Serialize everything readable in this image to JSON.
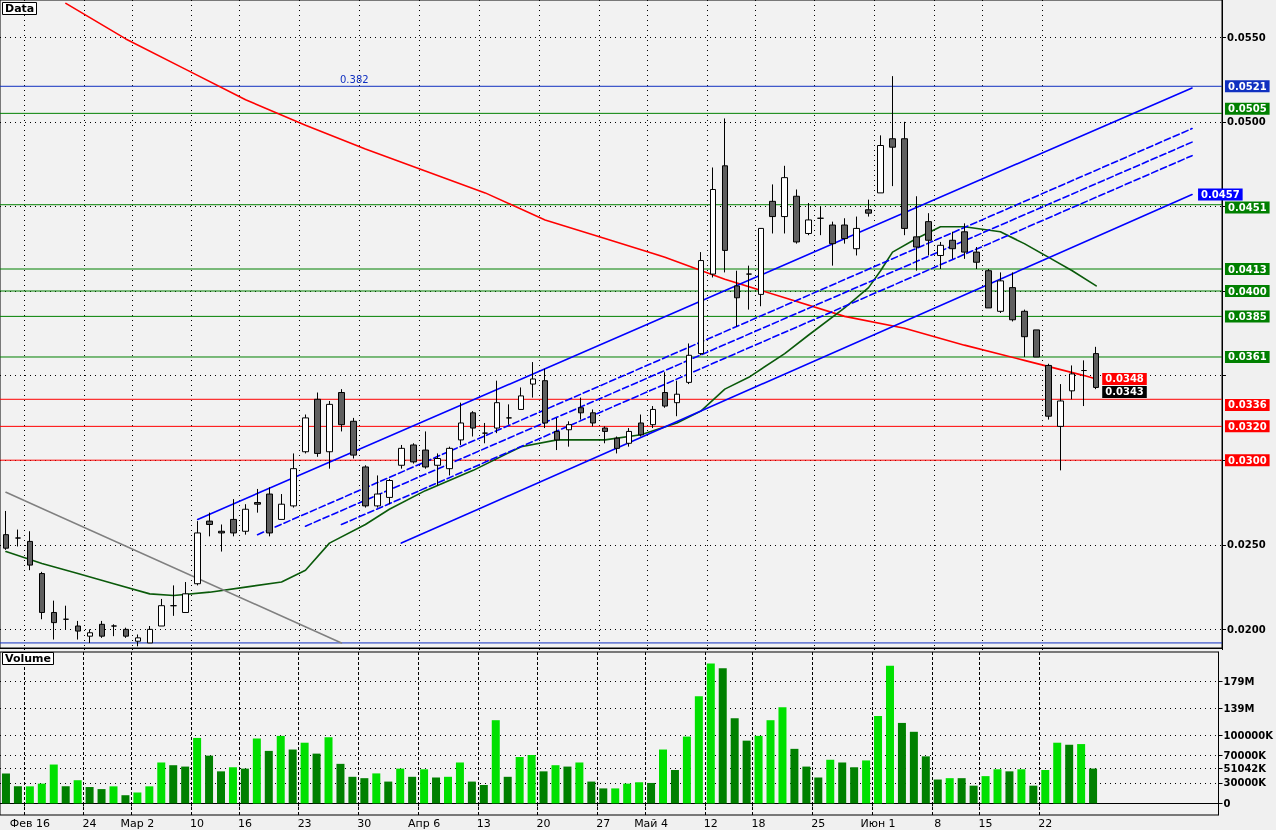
{
  "chart_data": [
    {
      "type": "candlestick",
      "title": "Data",
      "categories": [
        null,
        null,
        null,
        null,
        null,
        null,
        null,
        null,
        null,
        null,
        null,
        null,
        null,
        null,
        null,
        null,
        null,
        null,
        null,
        null,
        null,
        null,
        null,
        null,
        null,
        null,
        null,
        null,
        null,
        null,
        null,
        null,
        null,
        null,
        null,
        null,
        null,
        null,
        null,
        null,
        null,
        null,
        null,
        null,
        null,
        null,
        null,
        null,
        null,
        null,
        null,
        null,
        null,
        null,
        null,
        null,
        null,
        null,
        null,
        null,
        null,
        null,
        null,
        null,
        null,
        null,
        null,
        null,
        null,
        null,
        null,
        null,
        null,
        null,
        null,
        null,
        null,
        null,
        null,
        null,
        null,
        null,
        null,
        null,
        null,
        null,
        null,
        null,
        null,
        null,
        null,
        null,
        null,
        null,
        null,
        null,
        null,
        null,
        null,
        null,
        null,
        null
      ],
      "ohlc": [
        [
          0.0256,
          0.027,
          0.0247,
          0.0248
        ],
        [
          0.0254,
          0.0259,
          0.0249,
          0.0254
        ],
        [
          0.0252,
          0.0258,
          0.0235,
          0.0238
        ],
        [
          0.0233,
          0.0234,
          0.0206,
          0.021
        ],
        [
          0.021,
          0.0217,
          0.0194,
          0.0204
        ],
        [
          0.0206,
          0.0214,
          0.02,
          0.0206
        ],
        [
          0.0202,
          0.0205,
          0.0194,
          0.0199
        ],
        [
          0.0196,
          0.02,
          0.0192,
          0.0198
        ],
        [
          0.0203,
          0.0205,
          0.0195,
          0.0196
        ],
        [
          0.0202,
          0.0203,
          0.0196,
          0.0202
        ],
        [
          0.02,
          0.0201,
          0.0195,
          0.0196
        ],
        [
          0.0193,
          0.0197,
          0.019,
          0.0195
        ],
        [
          0.0192,
          0.0202,
          0.0192,
          0.02
        ],
        [
          0.0202,
          0.0218,
          0.0202,
          0.0214
        ],
        [
          0.0214,
          0.0226,
          0.0208,
          0.0214
        ],
        [
          0.021,
          0.0228,
          0.021,
          0.0221
        ],
        [
          0.0227,
          0.0264,
          0.0226,
          0.0257
        ],
        [
          0.0264,
          0.0269,
          0.0255,
          0.0262
        ],
        [
          0.0258,
          0.0262,
          0.0246,
          0.0257
        ],
        [
          0.0265,
          0.0277,
          0.0255,
          0.0257
        ],
        [
          0.0258,
          0.0274,
          0.0256,
          0.0271
        ],
        [
          0.0275,
          0.0283,
          0.0269,
          0.0274
        ],
        [
          0.028,
          0.0284,
          0.0255,
          0.0257
        ],
        [
          0.0265,
          0.028,
          0.0265,
          0.0274
        ],
        [
          0.0273,
          0.0304,
          0.0272,
          0.0295
        ],
        [
          0.0305,
          0.0327,
          0.0304,
          0.0325
        ],
        [
          0.0336,
          0.034,
          0.0302,
          0.0304
        ],
        [
          0.0305,
          0.0335,
          0.0295,
          0.0333
        ],
        [
          0.034,
          0.0342,
          0.0317,
          0.0321
        ],
        [
          0.0323,
          0.0325,
          0.0301,
          0.0303
        ],
        [
          0.0296,
          0.0297,
          0.0272,
          0.0273
        ],
        [
          0.0273,
          0.0291,
          0.0272,
          0.028
        ],
        [
          0.0278,
          0.0289,
          0.0274,
          0.0288
        ],
        [
          0.0297,
          0.0309,
          0.0295,
          0.0307
        ],
        [
          0.0309,
          0.031,
          0.0298,
          0.0299
        ],
        [
          0.0306,
          0.0317,
          0.0295,
          0.0296
        ],
        [
          0.0297,
          0.0304,
          0.0285,
          0.0301
        ],
        [
          0.0295,
          0.0308,
          0.0291,
          0.0307
        ],
        [
          0.0312,
          0.0334,
          0.0309,
          0.0322
        ],
        [
          0.0328,
          0.0329,
          0.0314,
          0.0319
        ],
        [
          0.0316,
          0.0322,
          0.031,
          0.0316
        ],
        [
          0.0319,
          0.0347,
          0.0316,
          0.0334
        ],
        [
          0.0325,
          0.0333,
          0.0321,
          0.0325
        ],
        [
          0.033,
          0.0343,
          0.033,
          0.0338
        ],
        [
          0.0345,
          0.0358,
          0.0337,
          0.0348
        ],
        [
          0.0347,
          0.0354,
          0.0319,
          0.0322
        ],
        [
          0.0317,
          0.0325,
          0.0306,
          0.0312
        ],
        [
          0.0318,
          0.0323,
          0.0308,
          0.0321
        ],
        [
          0.0331,
          0.0337,
          0.0324,
          0.0328
        ],
        [
          0.0328,
          0.033,
          0.032,
          0.0322
        ],
        [
          0.0319,
          0.032,
          0.031,
          0.0317
        ],
        [
          0.0313,
          0.0314,
          0.0304,
          0.0307
        ],
        [
          0.031,
          0.0319,
          0.0308,
          0.0317
        ],
        [
          0.0322,
          0.0327,
          0.0314,
          0.0315
        ],
        [
          0.0321,
          0.0332,
          0.0319,
          0.033
        ],
        [
          0.034,
          0.0352,
          0.0331,
          0.0332
        ],
        [
          0.0334,
          0.0347,
          0.0326,
          0.0339
        ],
        [
          0.0346,
          0.0369,
          0.0345,
          0.0362
        ],
        [
          0.0363,
          0.0423,
          0.0362,
          0.0418
        ],
        [
          0.041,
          0.0473,
          0.0408,
          0.046
        ],
        [
          0.0474,
          0.0502,
          0.0411,
          0.0424
        ],
        [
          0.0403,
          0.0412,
          0.0379,
          0.0396
        ],
        [
          0.041,
          0.0415,
          0.0389,
          0.041
        ],
        [
          0.0398,
          0.0437,
          0.0391,
          0.0437
        ],
        [
          0.0453,
          0.0463,
          0.0434,
          0.0444
        ],
        [
          0.0444,
          0.0474,
          0.0434,
          0.0467
        ],
        [
          0.0456,
          0.046,
          0.0428,
          0.0429
        ],
        [
          0.0434,
          0.0452,
          0.0433,
          0.0442
        ],
        [
          0.0443,
          0.045,
          0.0433,
          0.0443
        ],
        [
          0.0439,
          0.0441,
          0.0415,
          0.0428
        ],
        [
          0.0439,
          0.0443,
          0.0428,
          0.0431
        ],
        [
          0.0425,
          0.0444,
          0.0421,
          0.0437
        ],
        [
          0.0448,
          0.0454,
          0.0444,
          0.0446
        ],
        [
          0.0458,
          0.0492,
          0.0458,
          0.0486
        ],
        [
          0.049,
          0.0527,
          0.0462,
          0.0485
        ],
        [
          0.049,
          0.05,
          0.0433,
          0.0437
        ],
        [
          0.0432,
          0.0456,
          0.0412,
          0.0426
        ],
        [
          0.0441,
          0.0446,
          0.0421,
          0.043
        ],
        [
          0.0421,
          0.0429,
          0.0413,
          0.0427
        ],
        [
          0.043,
          0.0435,
          0.0419,
          0.0425
        ],
        [
          0.0435,
          0.044,
          0.0419,
          0.0423
        ],
        [
          0.0423,
          0.0426,
          0.0413,
          0.0417
        ],
        [
          0.0412,
          0.0413,
          0.039,
          0.039
        ],
        [
          0.0388,
          0.0411,
          0.0387,
          0.0406
        ],
        [
          0.0402,
          0.0411,
          0.0382,
          0.0383
        ],
        [
          0.0388,
          0.0389,
          0.0361,
          0.0373
        ],
        [
          0.0377,
          0.0377,
          0.0361,
          0.0361
        ],
        [
          0.0356,
          0.0357,
          0.0324,
          0.0326
        ],
        [
          0.032,
          0.0345,
          0.0294,
          0.0335
        ],
        [
          0.0341,
          0.0356,
          0.0336,
          0.0351
        ],
        [
          0.0353,
          0.0359,
          0.0332,
          0.0353
        ],
        [
          0.0363,
          0.0367,
          0.0342,
          0.0343
        ],
        null,
        null,
        null,
        null,
        null,
        null,
        null,
        null,
        null,
        null
      ],
      "value_labels": [
        null,
        null,
        null,
        null,
        null,
        null,
        null,
        null,
        null,
        null,
        null,
        null,
        null,
        null,
        null,
        null,
        null,
        null,
        null,
        null,
        null,
        null,
        null,
        null,
        null,
        null,
        null,
        null,
        null,
        null,
        null,
        null,
        null,
        null,
        null,
        null,
        null,
        null,
        null,
        null,
        null,
        null,
        null,
        null,
        null,
        null,
        null,
        null,
        null,
        null,
        null,
        null,
        null,
        null,
        null,
        null,
        null,
        null,
        null,
        null,
        null,
        null,
        null,
        null,
        null,
        null,
        null,
        null,
        null,
        null,
        null,
        null,
        null,
        null,
        null,
        null,
        null,
        null,
        null,
        null,
        null,
        null,
        null,
        null,
        null,
        null,
        null,
        null,
        null,
        null,
        null,
        "0.0343",
        null,
        null,
        null,
        null,
        null,
        null,
        null,
        null,
        null,
        null
      ],
      "series": [
        {
          "type": "line",
          "color": "#ff0000",
          "values": [
            null,
            null,
            null,
            null,
            null,
            0.057,
            null,
            null,
            null,
            null,
            0.0549,
            null,
            null,
            null,
            null,
            0.0531,
            null,
            null,
            null,
            null,
            0.0513,
            null,
            null,
            null,
            null,
            0.0498,
            null,
            null,
            null,
            null,
            0.0484,
            null,
            null,
            null,
            null,
            0.0471,
            null,
            null,
            null,
            null,
            0.0458,
            null,
            null,
            null,
            null,
            0.0442,
            null,
            null,
            null,
            null,
            0.0431,
            null,
            null,
            null,
            null,
            0.042,
            null,
            null,
            null,
            null,
            0.0407,
            null,
            null,
            null,
            null,
            0.0396,
            null,
            null,
            null,
            null,
            0.0385,
            null,
            null,
            null,
            null,
            0.0378,
            null,
            null,
            null,
            null,
            0.0368,
            null,
            null,
            null,
            null,
            0.0359,
            null,
            null,
            null,
            null,
            0.035,
            0.0348,
            null,
            null,
            null,
            null,
            null,
            null,
            null,
            null,
            null,
            null
          ],
          "value_labels": [
            null,
            null,
            null,
            null,
            null,
            null,
            null,
            null,
            null,
            null,
            null,
            null,
            null,
            null,
            null,
            null,
            null,
            null,
            null,
            null,
            null,
            null,
            null,
            null,
            null,
            null,
            null,
            null,
            null,
            null,
            null,
            null,
            null,
            null,
            null,
            null,
            null,
            null,
            null,
            null,
            null,
            null,
            null,
            null,
            null,
            null,
            null,
            null,
            null,
            null,
            null,
            null,
            null,
            null,
            null,
            null,
            null,
            null,
            null,
            null,
            null,
            null,
            null,
            null,
            null,
            null,
            null,
            null,
            null,
            null,
            null,
            null,
            null,
            null,
            null,
            null,
            null,
            null,
            null,
            null,
            null,
            null,
            null,
            null,
            null,
            null,
            null,
            null,
            null,
            null,
            null,
            "0.0348",
            null,
            null,
            null,
            null,
            null,
            null,
            null,
            null,
            null,
            null
          ]
        },
        {
          "type": "line",
          "color": "#0a5a0a",
          "values": [
            0.0246,
            null,
            null,
            0.0239,
            null,
            null,
            0.0233,
            null,
            null,
            0.0227,
            null,
            null,
            0.0221,
            null,
            0.022,
            null,
            null,
            0.0222,
            null,
            null,
            0.0225,
            null,
            null,
            0.0228,
            null,
            0.0235,
            null,
            0.0251,
            null,
            null,
            0.0262,
            null,
            0.0271,
            null,
            null,
            0.0282,
            null,
            null,
            null,
            0.0294,
            null,
            null,
            null,
            0.0308,
            null,
            null,
            0.0312,
            null,
            null,
            null,
            0.0312,
            null,
            null,
            0.0315,
            null,
            null,
            0.0322,
            null,
            0.0329,
            null,
            0.0342,
            null,
            0.0349,
            null,
            null,
            0.0363,
            null,
            0.0374,
            null,
            null,
            0.039,
            null,
            0.0402,
            0.0412,
            0.0423,
            null,
            0.0431,
            null,
            0.0438,
            null,
            0.0438,
            null,
            null,
            0.0435,
            null,
            0.0428,
            null,
            0.042,
            null,
            0.0412,
            null,
            0.0403,
            null,
            null,
            null,
            null,
            null,
            null,
            null,
            null,
            null,
            null
          ]
        },
        {
          "type": "line",
          "color": "#808080",
          "values": [
            0.0281,
            null,
            null,
            null,
            null,
            null,
            null,
            null,
            null,
            null,
            null,
            null,
            null,
            null,
            null,
            null,
            null,
            null,
            null,
            null,
            null,
            null,
            null,
            null,
            null,
            null,
            null,
            null,
            0.0192,
            null,
            null,
            null,
            null,
            null,
            null,
            null,
            null,
            null,
            null,
            null,
            null,
            null,
            null,
            null,
            null,
            null,
            null,
            null,
            null,
            null,
            null,
            null,
            null,
            null,
            null,
            null,
            null,
            null,
            null,
            null,
            null,
            null,
            null,
            null,
            null,
            null,
            null,
            null,
            null,
            null,
            null,
            null,
            null,
            null,
            null,
            null,
            null,
            null,
            null,
            null,
            null,
            null,
            null,
            null,
            null,
            null,
            null,
            null,
            null,
            null,
            null,
            null,
            null,
            null,
            null,
            null,
            null,
            null,
            null,
            null,
            null,
            null
          ]
        },
        {
          "type": "line",
          "color": "#0000ff",
          "values": [
            null,
            null,
            null,
            null,
            null,
            null,
            null,
            null,
            null,
            null,
            null,
            null,
            null,
            null,
            null,
            null,
            0.0265,
            null,
            null,
            null,
            null,
            null,
            null,
            null,
            null,
            null,
            null,
            null,
            null,
            null,
            null,
            null,
            null,
            null,
            null,
            null,
            null,
            null,
            null,
            null,
            null,
            null,
            null,
            null,
            null,
            null,
            null,
            null,
            null,
            null,
            null,
            null,
            null,
            null,
            null,
            null,
            null,
            null,
            null,
            null,
            null,
            null,
            null,
            null,
            null,
            null,
            null,
            null,
            null,
            null,
            null,
            null,
            null,
            null,
            null,
            null,
            null,
            null,
            null,
            null,
            null,
            null,
            null,
            null,
            null,
            null,
            null,
            null,
            null,
            null,
            null,
            null,
            null,
            null,
            null,
            null,
            null,
            null,
            null,
            0.052,
            null,
            null
          ]
        },
        {
          "type": "line",
          "color": "#0000ff",
          "values": [
            null,
            null,
            null,
            null,
            null,
            null,
            null,
            null,
            null,
            null,
            null,
            null,
            null,
            null,
            null,
            null,
            null,
            null,
            null,
            null,
            null,
            null,
            null,
            null,
            null,
            null,
            null,
            null,
            null,
            null,
            null,
            null,
            null,
            0.0251,
            null,
            null,
            null,
            null,
            null,
            null,
            null,
            null,
            null,
            null,
            null,
            null,
            null,
            null,
            null,
            null,
            null,
            null,
            null,
            null,
            null,
            null,
            null,
            null,
            null,
            null,
            null,
            null,
            null,
            null,
            null,
            null,
            null,
            null,
            null,
            null,
            null,
            null,
            null,
            null,
            null,
            null,
            null,
            null,
            null,
            null,
            null,
            null,
            null,
            null,
            null,
            null,
            null,
            null,
            null,
            null,
            null,
            null,
            null,
            null,
            null,
            null,
            null,
            null,
            null,
            0.0457,
            null,
            null
          ],
          "value_labels": [
            null,
            null,
            null,
            null,
            null,
            null,
            null,
            null,
            null,
            null,
            null,
            null,
            null,
            null,
            null,
            null,
            null,
            null,
            null,
            null,
            null,
            null,
            null,
            null,
            null,
            null,
            null,
            null,
            null,
            null,
            null,
            null,
            null,
            null,
            null,
            null,
            null,
            null,
            null,
            null,
            null,
            null,
            null,
            null,
            null,
            null,
            null,
            null,
            null,
            null,
            null,
            null,
            null,
            null,
            null,
            null,
            null,
            null,
            null,
            null,
            null,
            null,
            null,
            null,
            null,
            null,
            null,
            null,
            null,
            null,
            null,
            null,
            null,
            null,
            null,
            null,
            null,
            null,
            null,
            null,
            null,
            null,
            null,
            null,
            null,
            null,
            null,
            null,
            null,
            null,
            null,
            null,
            null,
            null,
            null,
            null,
            null,
            null,
            null,
            "0.0457",
            null,
            null
          ]
        },
        {
          "type": "line",
          "color": "#0000ff",
          "line_style": "dashed",
          "values": [
            null,
            null,
            null,
            null,
            null,
            null,
            null,
            null,
            null,
            null,
            null,
            null,
            null,
            null,
            null,
            null,
            null,
            null,
            null,
            null,
            null,
            0.0256,
            null,
            null,
            null,
            null,
            null,
            null,
            null,
            null,
            null,
            null,
            null,
            null,
            null,
            null,
            null,
            null,
            null,
            null,
            null,
            null,
            null,
            null,
            null,
            null,
            null,
            null,
            null,
            null,
            null,
            null,
            null,
            null,
            null,
            null,
            null,
            null,
            null,
            null,
            null,
            null,
            null,
            null,
            null,
            null,
            null,
            null,
            null,
            null,
            null,
            null,
            null,
            null,
            null,
            null,
            null,
            null,
            null,
            null,
            null,
            null,
            null,
            null,
            null,
            null,
            null,
            null,
            null,
            null,
            null,
            null,
            null,
            null,
            null,
            null,
            null,
            null,
            null,
            0.0496,
            null,
            null
          ]
        },
        {
          "type": "line",
          "color": "#0000ff",
          "line_style": "dashed",
          "values": [
            null,
            null,
            null,
            null,
            null,
            null,
            null,
            null,
            null,
            null,
            null,
            null,
            null,
            null,
            null,
            null,
            null,
            null,
            null,
            null,
            null,
            null,
            null,
            null,
            null,
            0.0261,
            null,
            null,
            null,
            null,
            null,
            null,
            null,
            null,
            null,
            null,
            null,
            null,
            null,
            null,
            null,
            null,
            null,
            null,
            null,
            null,
            null,
            null,
            null,
            null,
            null,
            null,
            null,
            null,
            null,
            null,
            null,
            null,
            null,
            null,
            null,
            null,
            null,
            null,
            null,
            null,
            null,
            null,
            null,
            null,
            null,
            null,
            null,
            null,
            null,
            null,
            null,
            null,
            null,
            null,
            null,
            null,
            null,
            null,
            null,
            null,
            null,
            null,
            null,
            null,
            null,
            null,
            null,
            null,
            null,
            null,
            null,
            null,
            null,
            0.0488,
            null,
            null
          ]
        },
        {
          "type": "line",
          "color": "#0000ff",
          "line_style": "dashed",
          "values": [
            null,
            null,
            null,
            null,
            null,
            null,
            null,
            null,
            null,
            null,
            null,
            null,
            null,
            null,
            null,
            null,
            null,
            null,
            null,
            null,
            null,
            null,
            null,
            null,
            null,
            null,
            null,
            null,
            0.0262,
            null,
            null,
            null,
            null,
            null,
            null,
            null,
            null,
            null,
            null,
            null,
            null,
            null,
            null,
            null,
            null,
            null,
            null,
            null,
            null,
            null,
            null,
            null,
            null,
            null,
            null,
            null,
            null,
            null,
            null,
            null,
            null,
            null,
            null,
            null,
            null,
            null,
            null,
            null,
            null,
            null,
            null,
            null,
            null,
            null,
            null,
            null,
            null,
            null,
            null,
            null,
            null,
            null,
            null,
            null,
            null,
            null,
            null,
            null,
            null,
            null,
            null,
            null,
            null,
            null,
            null,
            null,
            null,
            null,
            null,
            0.048,
            null,
            null
          ]
        }
      ],
      "ref_lines": [
        {
          "axis": "y",
          "value": 0.0521,
          "label": "0.0521",
          "color": "#1030c0"
        },
        {
          "axis": "y",
          "value": 0.0505,
          "label": "0.0505",
          "color": "#008000"
        },
        {
          "axis": "y",
          "value": 0.0451,
          "label": "0.0451",
          "color": "#008000"
        },
        {
          "axis": "y",
          "value": 0.0413,
          "label": "0.0413",
          "color": "#008000"
        },
        {
          "axis": "y",
          "value": 0.04,
          "label": "0.0400",
          "color": "#008000"
        },
        {
          "axis": "y",
          "value": 0.0385,
          "label": "0.0385",
          "color": "#008000"
        },
        {
          "axis": "y",
          "value": 0.0361,
          "label": "0.0361",
          "color": "#008000"
        },
        {
          "axis": "y",
          "value": 0.0336,
          "label": "0.0336",
          "color": "#ff0000"
        },
        {
          "axis": "y",
          "value": 0.032,
          "label": "0.0320",
          "color": "#ff0000"
        },
        {
          "axis": "y",
          "value": 0.03,
          "label": "0.0300",
          "color": "#ff0000"
        },
        {
          "axis": "y",
          "value": 0.0192,
          "color": "#1030c0"
        }
      ],
      "annotations": [
        "0.382"
      ],
      "ylim": [
        0.0189,
        0.0572
      ],
      "yticks": [
        {
          "value": 0.02,
          "label": "0.0200"
        },
        {
          "value": 0.025,
          "label": "0.0250"
        },
        {
          "value": 0.03,
          "label": null
        },
        {
          "value": 0.035,
          "label": null
        },
        {
          "value": 0.04,
          "label": null
        },
        {
          "value": 0.045,
          "label": null
        },
        {
          "value": 0.05,
          "label": "0.0500"
        },
        {
          "value": 0.055,
          "label": "0.0550"
        }
      ],
      "grid": true,
      "marker": "none",
      "tick_labels": "y"
    },
    {
      "type": "bar",
      "title": "Volume",
      "categories": [
        null,
        null,
        "Фев 16",
        null,
        null,
        null,
        null,
        "24",
        null,
        null,
        null,
        "Мар 2",
        null,
        null,
        null,
        null,
        "10",
        null,
        null,
        null,
        "16",
        null,
        null,
        null,
        null,
        "23",
        null,
        null,
        null,
        null,
        "30",
        null,
        null,
        null,
        null,
        "Апр 6",
        null,
        null,
        null,
        null,
        "13",
        null,
        null,
        null,
        null,
        "20",
        null,
        null,
        null,
        null,
        "27",
        null,
        null,
        null,
        "Май 4",
        null,
        null,
        null,
        null,
        "12",
        null,
        null,
        null,
        "18",
        null,
        null,
        null,
        null,
        "25",
        null,
        null,
        null,
        null,
        "Июн 1",
        null,
        null,
        null,
        null,
        "8",
        null,
        null,
        null,
        "15",
        null,
        null,
        null,
        null,
        "22",
        null,
        null,
        null,
        null,
        null,
        null,
        null,
        null,
        null,
        null,
        null,
        null,
        null,
        null
      ],
      "values": [
        44000000,
        25000000,
        25000000,
        29000000,
        57000000,
        25000000,
        34000000,
        24000000,
        21000000,
        25000000,
        12000000,
        16000000,
        25000000,
        60000000,
        56000000,
        54000000,
        96000000,
        70000000,
        47000000,
        53000000,
        51000000,
        95000000,
        77000000,
        99000000,
        79000000,
        89000000,
        73000000,
        97000000,
        58000000,
        39000000,
        37000000,
        44000000,
        32000000,
        51000000,
        39000000,
        50000000,
        38000000,
        39000000,
        60000000,
        32000000,
        27000000,
        122000000,
        39000000,
        68000000,
        71000000,
        47000000,
        56000000,
        54000000,
        60000000,
        32000000,
        22000000,
        22000000,
        29000000,
        31000000,
        30000000,
        79000000,
        49000000,
        98000000,
        157000000,
        205000000,
        198000000,
        125000000,
        92000000,
        99000000,
        122000000,
        141000000,
        80000000,
        54000000,
        38000000,
        64000000,
        60000000,
        53000000,
        63000000,
        128000000,
        202000000,
        118000000,
        105000000,
        69000000,
        35000000,
        37000000,
        37000000,
        26000000,
        40000000,
        50000000,
        47000000,
        50000000,
        26000000,
        49000000,
        89000000,
        86000000,
        87000000,
        51042000,
        null,
        null,
        null,
        null,
        null,
        null,
        null,
        null,
        null,
        null
      ],
      "colors": [
        "#008000",
        "#008000",
        "#00e000",
        "#00e000",
        "#00e000",
        "#008000",
        "#00e000",
        "#008000",
        "#008000",
        "#00e000",
        "#008000",
        "#00e000",
        "#00e000",
        "#00e000",
        "#008000",
        "#008000",
        "#00e000",
        "#008000",
        "#008000",
        "#00e000",
        "#008000",
        "#00e000",
        "#008000",
        "#00e000",
        "#008000",
        "#00e000",
        "#008000",
        "#00e000",
        "#008000",
        "#008000",
        "#008000",
        "#00e000",
        "#008000",
        "#00e000",
        "#008000",
        "#00e000",
        "#008000",
        "#00e000",
        "#00e000",
        "#008000",
        "#008000",
        "#00e000",
        "#008000",
        "#00e000",
        "#00e000",
        "#008000",
        "#00e000",
        "#008000",
        "#00e000",
        "#008000",
        "#008000",
        "#00e000",
        "#00e000",
        "#00e000",
        "#008000",
        "#00e000",
        "#008000",
        "#00e000",
        "#00e000",
        "#00e000",
        "#008000",
        "#008000",
        "#008000",
        "#00e000",
        "#00e000",
        "#00e000",
        "#008000",
        "#008000",
        "#008000",
        "#00e000",
        "#008000",
        "#008000",
        "#00e000",
        "#00e000",
        "#00e000",
        "#008000",
        "#008000",
        "#008000",
        "#008000",
        "#00e000",
        "#008000",
        "#008000",
        "#00e000",
        "#00e000",
        "#008000",
        "#00e000",
        "#008000",
        "#00e000",
        "#00e000",
        "#008000",
        "#00e000",
        "#008000",
        null,
        null,
        null,
        null,
        null,
        null,
        null,
        null,
        null,
        null
      ],
      "ylim": [
        -17000000,
        222000000
      ],
      "yticks": [
        0,
        {
          "value": 30000000,
          "label": "30000K"
        },
        {
          "value": 51042000,
          "label": "51042K"
        },
        {
          "value": 70000000,
          "label": "70000K"
        },
        {
          "value": 100000000,
          "label": "100000K"
        },
        {
          "value": 139000000,
          "label": "139M"
        },
        {
          "value": 179000000,
          "label": "179M"
        }
      ],
      "grid": true
    }
  ]
}
